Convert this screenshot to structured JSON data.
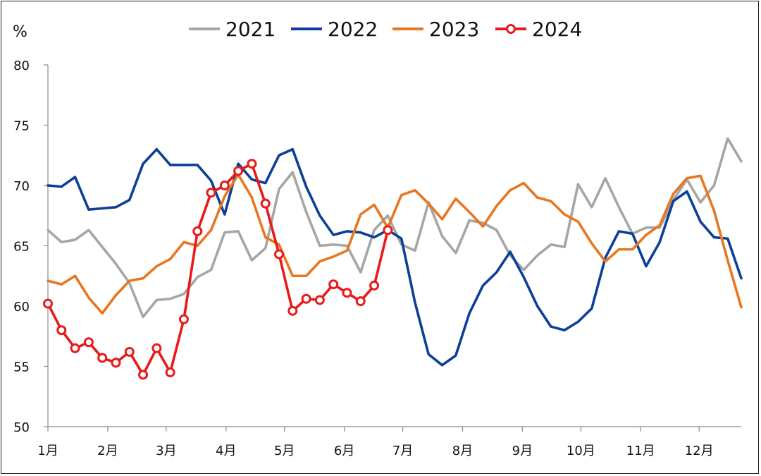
{
  "chart_data": {
    "type": "line",
    "unit": "%",
    "ylim": [
      50,
      80
    ],
    "yticks": [
      50,
      55,
      60,
      65,
      70,
      75,
      80
    ],
    "xlim": [
      0,
      51
    ],
    "xticks": [
      {
        "label": "1月",
        "x": 0
      },
      {
        "label": "2月",
        "x": 4.4
      },
      {
        "label": "3月",
        "x": 8.7
      },
      {
        "label": "4月",
        "x": 13.1
      },
      {
        "label": "5月",
        "x": 17.4
      },
      {
        "label": "6月",
        "x": 21.8
      },
      {
        "label": "7月",
        "x": 26.1
      },
      {
        "label": "8月",
        "x": 30.5
      },
      {
        "label": "9月",
        "x": 34.9
      },
      {
        "label": "10月",
        "x": 39.2
      },
      {
        "label": "11月",
        "x": 43.6
      },
      {
        "label": "12月",
        "x": 47.9
      }
    ],
    "legend_position": "top",
    "series": [
      {
        "name": "2021",
        "color": "#a6a6a6",
        "marker": false,
        "values": [
          66.3,
          65.3,
          65.5,
          66.3,
          64.9,
          63.5,
          61.9,
          59.1,
          60.5,
          60.6,
          61.0,
          62.4,
          63.0,
          66.1,
          66.2,
          63.8,
          64.8,
          69.7,
          71.1,
          67.8,
          65.0,
          65.1,
          65.0,
          62.8,
          66.3,
          67.5,
          65.1,
          64.6,
          68.6,
          65.8,
          64.4,
          67.1,
          66.9,
          66.3,
          64.2,
          63.0,
          64.2,
          65.1,
          64.9,
          70.1,
          68.2,
          70.6,
          68.2,
          66.0,
          66.5,
          66.5,
          68.8,
          70.5,
          68.6,
          70.0,
          73.9,
          72.0
        ]
      },
      {
        "name": "2022",
        "color": "#0b3f99",
        "marker": false,
        "values": [
          70.0,
          69.9,
          70.7,
          68.0,
          68.1,
          68.2,
          68.8,
          71.8,
          73.0,
          71.7,
          71.7,
          71.7,
          70.4,
          67.6,
          71.8,
          70.5,
          70.2,
          72.5,
          73.0,
          69.9,
          67.5,
          65.9,
          66.2,
          66.1,
          65.7,
          66.3,
          65.6,
          60.3,
          56.0,
          55.1,
          55.9,
          59.4,
          61.7,
          62.8,
          64.5,
          62.4,
          60.0,
          58.3,
          58.0,
          58.7,
          59.8,
          64.0,
          66.2,
          66.0,
          63.3,
          65.3,
          68.7,
          69.5,
          67.0,
          65.7,
          65.6,
          62.3
        ]
      },
      {
        "name": "2023",
        "color": "#e87722",
        "marker": false,
        "values": [
          62.1,
          61.8,
          62.5,
          60.7,
          59.4,
          60.9,
          62.1,
          62.3,
          63.3,
          63.9,
          65.3,
          65.0,
          66.3,
          69.1,
          70.9,
          69.0,
          65.7,
          65.1,
          62.5,
          62.5,
          63.7,
          64.1,
          64.6,
          67.6,
          68.4,
          66.5,
          69.2,
          69.6,
          68.5,
          67.2,
          68.9,
          67.8,
          66.6,
          68.3,
          69.6,
          70.2,
          69.0,
          68.7,
          67.6,
          67.0,
          65.2,
          63.7,
          64.7,
          64.7,
          65.9,
          66.7,
          69.3,
          70.6,
          70.8,
          67.9,
          63.8,
          59.9
        ]
      },
      {
        "name": "2024",
        "color": "#e81a1a",
        "marker": true,
        "values": [
          60.2,
          58.0,
          56.5,
          57.0,
          55.7,
          55.3,
          56.2,
          54.3,
          56.5,
          54.5,
          58.9,
          66.2,
          69.4,
          70.0,
          71.2,
          71.8,
          68.5,
          64.3,
          59.6,
          60.6,
          60.5,
          61.8,
          61.1,
          60.4,
          61.7,
          66.3
        ]
      }
    ]
  }
}
